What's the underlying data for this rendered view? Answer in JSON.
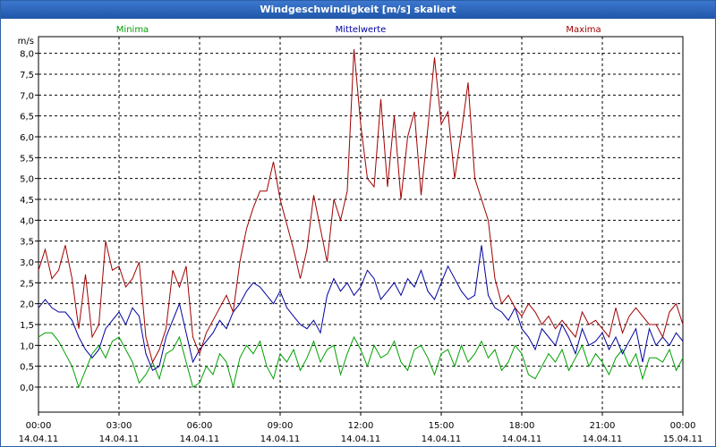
{
  "window": {
    "title": "Windgeschwindigkeit [m/s] skaliert"
  },
  "chart_data": {
    "type": "line",
    "title": "Windgeschwindigkeit [m/s] skaliert",
    "ylabel": "m/s",
    "xlabel": "",
    "ylim": [
      -0.6,
      8.4
    ],
    "xlim": [
      0,
      24
    ],
    "grid": true,
    "yticks": [
      "0,0",
      "0,5",
      "1,0",
      "1,5",
      "2,0",
      "2,5",
      "3,0",
      "3,5",
      "4,0",
      "4,5",
      "5,0",
      "5,5",
      "6,0",
      "6,5",
      "7,0",
      "7,5",
      "8,0"
    ],
    "xticks": [
      {
        "time": "00:00",
        "date": "14.04.11"
      },
      {
        "time": "03:00",
        "date": "14.04.11"
      },
      {
        "time": "06:00",
        "date": "14.04.11"
      },
      {
        "time": "09:00",
        "date": "14.04.11"
      },
      {
        "time": "12:00",
        "date": "14.04.11"
      },
      {
        "time": "15:00",
        "date": "14.04.11"
      },
      {
        "time": "18:00",
        "date": "14.04.11"
      },
      {
        "time": "21:00",
        "date": "14.04.11"
      },
      {
        "time": "00:00",
        "date": "15.04.11"
      }
    ],
    "series": [
      {
        "name": "Minima",
        "color": "#00a000",
        "x": [
          0,
          0.25,
          0.5,
          0.75,
          1,
          1.25,
          1.5,
          1.75,
          2,
          2.25,
          2.5,
          2.75,
          3,
          3.25,
          3.5,
          3.75,
          4,
          4.25,
          4.5,
          4.75,
          5,
          5.25,
          5.5,
          5.75,
          6,
          6.25,
          6.5,
          6.75,
          7,
          7.25,
          7.5,
          7.75,
          8,
          8.25,
          8.5,
          8.75,
          9,
          9.25,
          9.5,
          9.75,
          10,
          10.25,
          10.5,
          10.75,
          11,
          11.25,
          11.5,
          11.75,
          12,
          12.25,
          12.5,
          12.75,
          13,
          13.25,
          13.5,
          13.75,
          14,
          14.25,
          14.5,
          14.75,
          15,
          15.25,
          15.5,
          15.75,
          16,
          16.25,
          16.5,
          16.75,
          17,
          17.25,
          17.5,
          17.75,
          18,
          18.25,
          18.5,
          18.75,
          19,
          19.25,
          19.5,
          19.75,
          20,
          20.25,
          20.5,
          20.75,
          21,
          21.25,
          21.5,
          21.75,
          22,
          22.25,
          22.5,
          22.75,
          23,
          23.25,
          23.5,
          23.75,
          24
        ],
        "values": [
          1.2,
          1.3,
          1.3,
          1.1,
          0.8,
          0.5,
          0.0,
          0.4,
          0.8,
          1.0,
          0.7,
          1.1,
          1.2,
          0.9,
          0.6,
          0.1,
          0.3,
          0.6,
          0.2,
          0.8,
          0.9,
          1.2,
          0.6,
          0.0,
          0.1,
          0.5,
          0.3,
          0.8,
          0.6,
          0.0,
          0.7,
          1.0,
          0.8,
          1.1,
          0.5,
          0.2,
          0.8,
          0.6,
          0.9,
          0.4,
          0.7,
          1.1,
          0.6,
          0.9,
          1.0,
          0.3,
          0.8,
          1.2,
          0.9,
          0.5,
          1.0,
          0.7,
          0.8,
          1.1,
          0.6,
          0.4,
          0.9,
          1.0,
          0.7,
          0.3,
          0.8,
          0.9,
          0.5,
          1.0,
          0.6,
          0.8,
          1.1,
          0.7,
          0.9,
          0.4,
          0.6,
          1.0,
          0.8,
          0.3,
          0.2,
          0.5,
          0.8,
          0.6,
          0.9,
          0.4,
          0.7,
          1.0,
          0.5,
          0.8,
          0.6,
          0.3,
          0.7,
          0.9,
          0.5,
          0.8,
          0.2,
          0.7,
          0.7,
          0.6,
          0.9,
          0.4,
          0.7
        ],
        "legend_position": "top-left"
      },
      {
        "name": "Mittelwerte",
        "color": "#0000a0",
        "x": [
          0,
          0.25,
          0.5,
          0.75,
          1,
          1.25,
          1.5,
          1.75,
          2,
          2.25,
          2.5,
          2.75,
          3,
          3.25,
          3.5,
          3.75,
          4,
          4.25,
          4.5,
          4.75,
          5,
          5.25,
          5.5,
          5.75,
          6,
          6.25,
          6.5,
          6.75,
          7,
          7.25,
          7.5,
          7.75,
          8,
          8.25,
          8.5,
          8.75,
          9,
          9.25,
          9.5,
          9.75,
          10,
          10.25,
          10.5,
          10.75,
          11,
          11.25,
          11.5,
          11.75,
          12,
          12.25,
          12.5,
          12.75,
          13,
          13.25,
          13.5,
          13.75,
          14,
          14.25,
          14.5,
          14.75,
          15,
          15.25,
          15.5,
          15.75,
          16,
          16.25,
          16.5,
          16.75,
          17,
          17.25,
          17.5,
          17.75,
          18,
          18.25,
          18.5,
          18.75,
          19,
          19.25,
          19.5,
          19.75,
          20,
          20.25,
          20.5,
          20.75,
          21,
          21.25,
          21.5,
          21.75,
          22,
          22.25,
          22.5,
          22.75,
          23,
          23.25,
          23.5,
          23.75,
          24
        ],
        "values": [
          1.9,
          2.1,
          1.9,
          1.8,
          1.8,
          1.6,
          1.2,
          0.9,
          0.7,
          0.9,
          1.4,
          1.6,
          1.8,
          1.5,
          1.9,
          1.7,
          0.8,
          0.4,
          0.5,
          1.2,
          1.6,
          2.0,
          1.3,
          0.6,
          0.9,
          1.1,
          1.3,
          1.6,
          1.4,
          1.8,
          2.0,
          2.3,
          2.5,
          2.4,
          2.2,
          2.0,
          2.3,
          1.9,
          1.7,
          1.5,
          1.4,
          1.6,
          1.3,
          2.2,
          2.6,
          2.3,
          2.5,
          2.2,
          2.4,
          2.8,
          2.6,
          2.1,
          2.3,
          2.5,
          2.2,
          2.6,
          2.4,
          2.8,
          2.3,
          2.1,
          2.5,
          2.9,
          2.6,
          2.3,
          2.1,
          2.2,
          3.4,
          2.2,
          1.9,
          1.8,
          1.6,
          1.9,
          1.4,
          1.2,
          0.9,
          1.4,
          1.2,
          1.0,
          1.5,
          1.2,
          0.8,
          1.4,
          1.0,
          1.1,
          1.3,
          0.9,
          1.2,
          0.8,
          1.1,
          1.4,
          0.6,
          1.4,
          1.0,
          1.2,
          1.0,
          1.3,
          1.1
        ],
        "legend_position": "top-center"
      },
      {
        "name": "Maxima",
        "color": "#a00000",
        "x": [
          0,
          0.25,
          0.5,
          0.75,
          1,
          1.25,
          1.5,
          1.75,
          2,
          2.25,
          2.5,
          2.75,
          3,
          3.25,
          3.5,
          3.75,
          4,
          4.25,
          4.5,
          4.75,
          5,
          5.25,
          5.5,
          5.75,
          6,
          6.25,
          6.5,
          6.75,
          7,
          7.25,
          7.5,
          7.75,
          8,
          8.25,
          8.5,
          8.75,
          9,
          9.25,
          9.5,
          9.75,
          10,
          10.25,
          10.5,
          10.75,
          11,
          11.25,
          11.5,
          11.75,
          12,
          12.25,
          12.5,
          12.75,
          13,
          13.25,
          13.5,
          13.75,
          14,
          14.25,
          14.5,
          14.75,
          15,
          15.25,
          15.5,
          15.75,
          16,
          16.25,
          16.5,
          16.75,
          17,
          17.25,
          17.5,
          17.75,
          18,
          18.25,
          18.5,
          18.75,
          19,
          19.25,
          19.5,
          19.75,
          20,
          20.25,
          20.5,
          20.75,
          21,
          21.25,
          21.5,
          21.75,
          22,
          22.25,
          22.5,
          22.75,
          23,
          23.25,
          23.5,
          23.75,
          24
        ],
        "values": [
          2.8,
          3.3,
          2.6,
          2.8,
          3.4,
          2.6,
          1.4,
          2.7,
          1.2,
          1.5,
          3.5,
          2.8,
          2.9,
          2.4,
          2.6,
          3.0,
          1.2,
          0.6,
          0.9,
          1.4,
          2.8,
          2.4,
          2.9,
          1.2,
          0.8,
          1.3,
          1.6,
          1.9,
          2.2,
          1.8,
          3.0,
          3.8,
          4.3,
          4.7,
          4.7,
          5.4,
          4.5,
          3.9,
          3.3,
          2.6,
          3.3,
          4.6,
          3.8,
          3.0,
          4.5,
          4.0,
          4.7,
          8.1,
          6.3,
          5.0,
          4.8,
          6.9,
          4.8,
          6.5,
          4.5,
          6.0,
          6.6,
          4.6,
          6.2,
          7.9,
          6.3,
          6.6,
          5.0,
          6.1,
          7.3,
          5.0,
          4.5,
          4.0,
          2.6,
          2.0,
          2.2,
          1.9,
          1.7,
          2.0,
          1.8,
          1.5,
          1.7,
          1.4,
          1.6,
          1.4,
          1.2,
          1.8,
          1.5,
          1.6,
          1.4,
          1.2,
          1.9,
          1.3,
          1.7,
          1.9,
          1.7,
          1.5,
          1.5,
          1.2,
          1.8,
          2.0,
          1.5
        ],
        "legend_position": "top-right"
      }
    ]
  }
}
